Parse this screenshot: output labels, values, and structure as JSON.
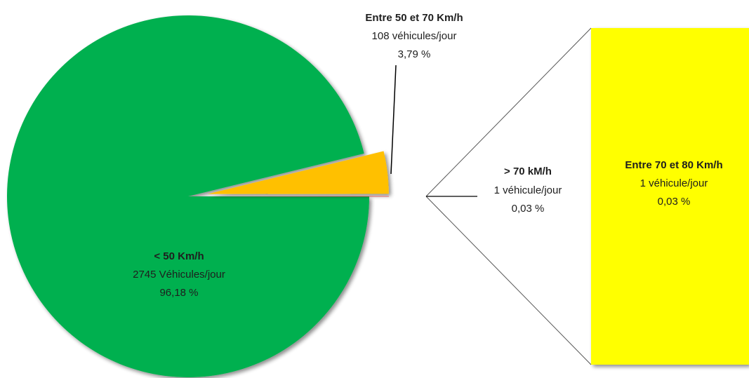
{
  "chart_data": {
    "type": "pie",
    "subtype": "bar-of-pie",
    "colors": {
      "green": "#00B04F",
      "orange": "#FFC000",
      "yellow": "#FFFF00"
    },
    "slices": [
      {
        "name": "< 50 Km/h",
        "vehicles": 2745,
        "vehicles_label": "2745 Véhicules/jour",
        "percent": 96.18,
        "percent_label": "96,18 %",
        "color": "#00B04F"
      },
      {
        "name": "Entre 50 et 70 Km/h",
        "vehicles": 108,
        "vehicles_label": "108 véhicules/jour",
        "percent": 3.79,
        "percent_label": "3,79 %",
        "color": "#FFC000"
      },
      {
        "name": "> 70 kM/h",
        "vehicles": 1,
        "vehicles_label": "1 véhicule/jour",
        "percent": 0.03,
        "percent_label": "0,03 %",
        "color": "#FF0000"
      }
    ],
    "breakdown": {
      "of": "> 70 kM/h",
      "items": [
        {
          "name": "Entre 70 et 80 Km/h",
          "vehicles": 1,
          "vehicles_label": "1 véhicule/jour",
          "percent": 0.03,
          "percent_label": "0,03 %",
          "color": "#FFFF00"
        }
      ]
    }
  }
}
